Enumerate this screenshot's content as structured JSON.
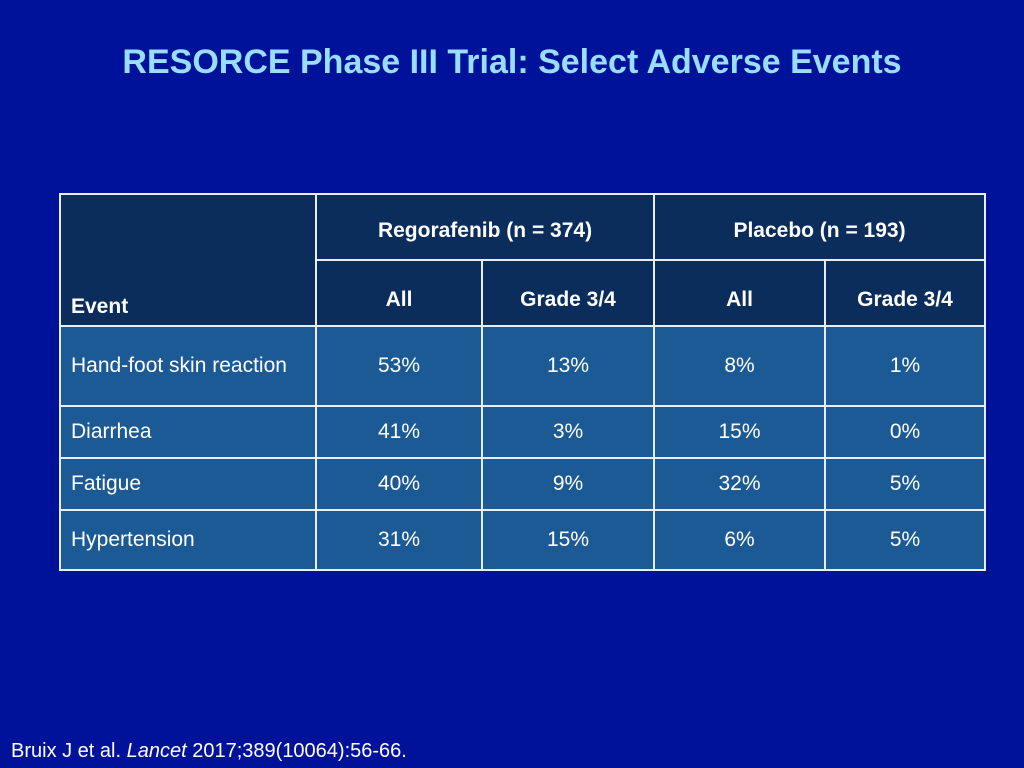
{
  "title": "RESORCE Phase III Trial: Select Adverse Events",
  "table": {
    "event_header": "Event",
    "groups": [
      {
        "label": "Regorafenib (n = 374)",
        "subcols": [
          "All",
          "Grade 3/4"
        ]
      },
      {
        "label": "Placebo (n = 193)",
        "subcols": [
          "All",
          "Grade 3/4"
        ]
      }
    ],
    "rows": [
      {
        "event": "Hand-foot skin reaction",
        "values": [
          "53%",
          "13%",
          "8%",
          "1%"
        ]
      },
      {
        "event": "Diarrhea",
        "values": [
          "41%",
          "3%",
          "15%",
          "0%"
        ]
      },
      {
        "event": "Fatigue",
        "values": [
          "40%",
          "9%",
          "32%",
          "5%"
        ]
      },
      {
        "event": "Hypertension",
        "values": [
          "31%",
          "15%",
          "6%",
          "5%"
        ]
      }
    ]
  },
  "citation": {
    "authors": "Bruix J et al.",
    "journal": "Lancet",
    "reference": "2017;389(10064):56-66."
  }
}
